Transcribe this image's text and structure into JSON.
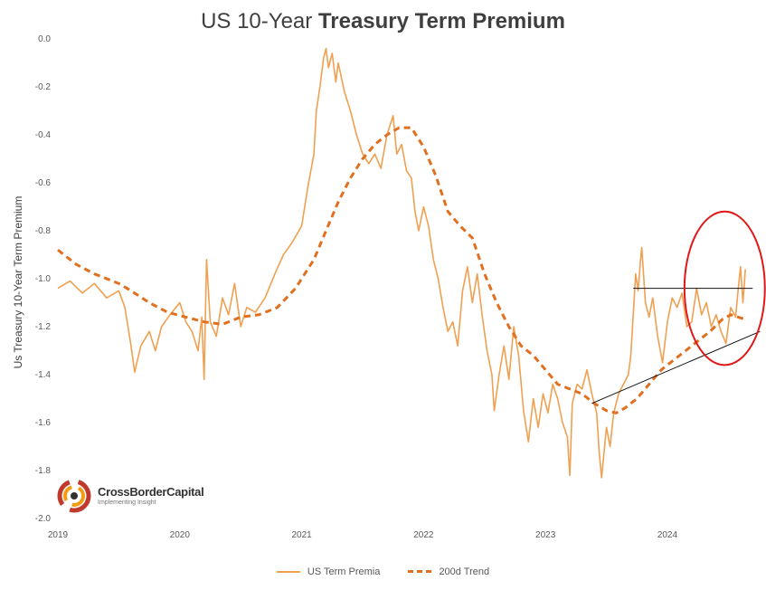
{
  "title": {
    "part1": "US 10-Year ",
    "part2": "Treasury Term Premium"
  },
  "logo": {
    "name": "CrossBorderCapital",
    "tagline": "Implementing Insight"
  },
  "legend": {
    "series1": "US Term Premia",
    "series2": "200d Trend"
  },
  "colors": {
    "series1": "#f0a050",
    "series2": "#e07020",
    "annotation_circle": "#e01818",
    "annotation_lines": "#111111"
  },
  "chart_data": {
    "type": "line",
    "ylabel": "Us Treasury 10-Year Term Premium",
    "ylim": [
      -2.0,
      0.0
    ],
    "xlim": [
      2019.0,
      2024.72
    ],
    "y_ticks": [
      "0.0",
      "-0.2",
      "-0.4",
      "-0.6",
      "-0.8",
      "-1.0",
      "-1.2",
      "-1.4",
      "-1.6",
      "-1.8",
      "-2.0"
    ],
    "x_ticks": [
      "2019",
      "2020",
      "2021",
      "2022",
      "2023",
      "2024"
    ],
    "grid": "none",
    "legend_position": "bottom",
    "series": [
      {
        "name": "US Term Premia",
        "style": "solid",
        "points": [
          [
            2019.0,
            -1.04
          ],
          [
            2019.1,
            -1.01
          ],
          [
            2019.2,
            -1.06
          ],
          [
            2019.3,
            -1.02
          ],
          [
            2019.4,
            -1.08
          ],
          [
            2019.5,
            -1.05
          ],
          [
            2019.55,
            -1.12
          ],
          [
            2019.6,
            -1.28
          ],
          [
            2019.63,
            -1.39
          ],
          [
            2019.68,
            -1.28
          ],
          [
            2019.75,
            -1.22
          ],
          [
            2019.8,
            -1.3
          ],
          [
            2019.85,
            -1.2
          ],
          [
            2019.92,
            -1.15
          ],
          [
            2020.0,
            -1.1
          ],
          [
            2020.05,
            -1.18
          ],
          [
            2020.1,
            -1.22
          ],
          [
            2020.15,
            -1.3
          ],
          [
            2020.18,
            -1.16
          ],
          [
            2020.2,
            -1.42
          ],
          [
            2020.22,
            -0.92
          ],
          [
            2020.25,
            -1.18
          ],
          [
            2020.3,
            -1.24
          ],
          [
            2020.35,
            -1.08
          ],
          [
            2020.4,
            -1.15
          ],
          [
            2020.45,
            -1.02
          ],
          [
            2020.5,
            -1.2
          ],
          [
            2020.55,
            -1.12
          ],
          [
            2020.62,
            -1.14
          ],
          [
            2020.7,
            -1.08
          ],
          [
            2020.78,
            -0.98
          ],
          [
            2020.85,
            -0.9
          ],
          [
            2020.92,
            -0.85
          ],
          [
            2021.0,
            -0.78
          ],
          [
            2021.05,
            -0.62
          ],
          [
            2021.1,
            -0.48
          ],
          [
            2021.12,
            -0.3
          ],
          [
            2021.15,
            -0.2
          ],
          [
            2021.18,
            -0.08
          ],
          [
            2021.2,
            -0.04
          ],
          [
            2021.22,
            -0.12
          ],
          [
            2021.25,
            -0.06
          ],
          [
            2021.28,
            -0.18
          ],
          [
            2021.3,
            -0.1
          ],
          [
            2021.35,
            -0.22
          ],
          [
            2021.4,
            -0.3
          ],
          [
            2021.45,
            -0.4
          ],
          [
            2021.5,
            -0.48
          ],
          [
            2021.55,
            -0.52
          ],
          [
            2021.6,
            -0.48
          ],
          [
            2021.65,
            -0.54
          ],
          [
            2021.7,
            -0.4
          ],
          [
            2021.75,
            -0.32
          ],
          [
            2021.78,
            -0.48
          ],
          [
            2021.82,
            -0.44
          ],
          [
            2021.86,
            -0.55
          ],
          [
            2021.9,
            -0.58
          ],
          [
            2021.93,
            -0.72
          ],
          [
            2021.96,
            -0.8
          ],
          [
            2022.0,
            -0.7
          ],
          [
            2022.04,
            -0.78
          ],
          [
            2022.08,
            -0.92
          ],
          [
            2022.12,
            -1.0
          ],
          [
            2022.16,
            -1.12
          ],
          [
            2022.2,
            -1.22
          ],
          [
            2022.24,
            -1.18
          ],
          [
            2022.28,
            -1.28
          ],
          [
            2022.32,
            -1.05
          ],
          [
            2022.36,
            -0.95
          ],
          [
            2022.4,
            -1.1
          ],
          [
            2022.44,
            -0.98
          ],
          [
            2022.48,
            -1.15
          ],
          [
            2022.52,
            -1.3
          ],
          [
            2022.56,
            -1.4
          ],
          [
            2022.58,
            -1.55
          ],
          [
            2022.62,
            -1.4
          ],
          [
            2022.66,
            -1.28
          ],
          [
            2022.7,
            -1.42
          ],
          [
            2022.74,
            -1.2
          ],
          [
            2022.78,
            -1.32
          ],
          [
            2022.82,
            -1.55
          ],
          [
            2022.86,
            -1.68
          ],
          [
            2022.9,
            -1.5
          ],
          [
            2022.94,
            -1.62
          ],
          [
            2022.98,
            -1.48
          ],
          [
            2023.02,
            -1.56
          ],
          [
            2023.06,
            -1.44
          ],
          [
            2023.1,
            -1.5
          ],
          [
            2023.14,
            -1.6
          ],
          [
            2023.18,
            -1.66
          ],
          [
            2023.2,
            -1.82
          ],
          [
            2023.22,
            -1.52
          ],
          [
            2023.26,
            -1.44
          ],
          [
            2023.3,
            -1.46
          ],
          [
            2023.34,
            -1.38
          ],
          [
            2023.38,
            -1.48
          ],
          [
            2023.42,
            -1.56
          ],
          [
            2023.44,
            -1.72
          ],
          [
            2023.46,
            -1.83
          ],
          [
            2023.5,
            -1.62
          ],
          [
            2023.53,
            -1.7
          ],
          [
            2023.56,
            -1.56
          ],
          [
            2023.6,
            -1.48
          ],
          [
            2023.64,
            -1.44
          ],
          [
            2023.68,
            -1.4
          ],
          [
            2023.7,
            -1.32
          ],
          [
            2023.72,
            -1.15
          ],
          [
            2023.74,
            -0.98
          ],
          [
            2023.76,
            -1.05
          ],
          [
            2023.78,
            -0.92
          ],
          [
            2023.79,
            -0.87
          ],
          [
            2023.82,
            -1.1
          ],
          [
            2023.85,
            -1.16
          ],
          [
            2023.88,
            -1.08
          ],
          [
            2023.92,
            -1.24
          ],
          [
            2023.96,
            -1.35
          ],
          [
            2024.0,
            -1.18
          ],
          [
            2024.04,
            -1.08
          ],
          [
            2024.08,
            -1.12
          ],
          [
            2024.12,
            -1.06
          ],
          [
            2024.16,
            -1.2
          ],
          [
            2024.2,
            -1.18
          ],
          [
            2024.24,
            -1.04
          ],
          [
            2024.28,
            -1.15
          ],
          [
            2024.32,
            -1.1
          ],
          [
            2024.36,
            -1.2
          ],
          [
            2024.4,
            -1.15
          ],
          [
            2024.44,
            -1.22
          ],
          [
            2024.48,
            -1.27
          ],
          [
            2024.52,
            -1.12
          ],
          [
            2024.56,
            -1.16
          ],
          [
            2024.58,
            -1.05
          ],
          [
            2024.6,
            -0.95
          ],
          [
            2024.62,
            -1.1
          ],
          [
            2024.64,
            -0.96
          ]
        ]
      },
      {
        "name": "200d Trend",
        "style": "dashed",
        "points": [
          [
            2019.0,
            -0.88
          ],
          [
            2019.15,
            -0.94
          ],
          [
            2019.3,
            -0.98
          ],
          [
            2019.5,
            -1.02
          ],
          [
            2019.6,
            -1.05
          ],
          [
            2019.75,
            -1.1
          ],
          [
            2019.9,
            -1.14
          ],
          [
            2020.05,
            -1.16
          ],
          [
            2020.2,
            -1.18
          ],
          [
            2020.35,
            -1.19
          ],
          [
            2020.5,
            -1.16
          ],
          [
            2020.65,
            -1.15
          ],
          [
            2020.8,
            -1.12
          ],
          [
            2020.95,
            -1.04
          ],
          [
            2021.1,
            -0.92
          ],
          [
            2021.2,
            -0.8
          ],
          [
            2021.3,
            -0.68
          ],
          [
            2021.4,
            -0.58
          ],
          [
            2021.5,
            -0.5
          ],
          [
            2021.6,
            -0.44
          ],
          [
            2021.7,
            -0.4
          ],
          [
            2021.8,
            -0.37
          ],
          [
            2021.9,
            -0.37
          ],
          [
            2022.0,
            -0.45
          ],
          [
            2022.1,
            -0.57
          ],
          [
            2022.2,
            -0.72
          ],
          [
            2022.3,
            -0.78
          ],
          [
            2022.4,
            -0.83
          ],
          [
            2022.5,
            -0.98
          ],
          [
            2022.6,
            -1.1
          ],
          [
            2022.7,
            -1.2
          ],
          [
            2022.8,
            -1.28
          ],
          [
            2022.9,
            -1.32
          ],
          [
            2023.0,
            -1.38
          ],
          [
            2023.1,
            -1.44
          ],
          [
            2023.2,
            -1.46
          ],
          [
            2023.3,
            -1.48
          ],
          [
            2023.4,
            -1.52
          ],
          [
            2023.5,
            -1.55
          ],
          [
            2023.58,
            -1.56
          ],
          [
            2023.65,
            -1.54
          ],
          [
            2023.75,
            -1.5
          ],
          [
            2023.85,
            -1.44
          ],
          [
            2023.95,
            -1.38
          ],
          [
            2024.05,
            -1.34
          ],
          [
            2024.15,
            -1.3
          ],
          [
            2024.25,
            -1.26
          ],
          [
            2024.35,
            -1.22
          ],
          [
            2024.45,
            -1.17
          ],
          [
            2024.52,
            -1.15
          ],
          [
            2024.58,
            -1.16
          ],
          [
            2024.64,
            -1.17
          ]
        ]
      }
    ],
    "annotations": {
      "flat_line": [
        [
          2023.72,
          -1.04
        ],
        [
          2024.7,
          -1.04
        ]
      ],
      "rising_trendline": [
        [
          2023.38,
          -1.52
        ],
        [
          2024.76,
          -1.22
        ]
      ],
      "circle_center": [
        2024.47,
        -1.04
      ],
      "circle_radius_x_years": 0.33,
      "circle_radius_y_units": 0.32
    }
  }
}
